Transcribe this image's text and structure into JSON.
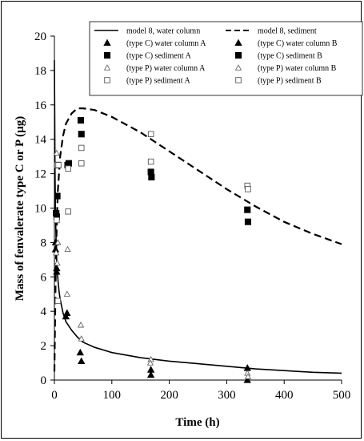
{
  "chart_data": {
    "type": "scatter",
    "xlabel": "Time (h)",
    "ylabel": "Mass of fenvalerate type C or P (µg)",
    "xlim": [
      0,
      500
    ],
    "ylim": [
      0,
      20
    ],
    "xticks": [
      "0",
      "100",
      "200",
      "300",
      "400",
      "500"
    ],
    "yticks": [
      "0",
      "2",
      "4",
      "6",
      "8",
      "10",
      "12",
      "14",
      "16",
      "18",
      "20"
    ],
    "grid": false,
    "legend_position": "top-right",
    "lines": [
      {
        "name": "model 8, water column",
        "style": "solid",
        "x": [
          0,
          0.5,
          1,
          2,
          3,
          4,
          6,
          8,
          10,
          15,
          20,
          30,
          40,
          50,
          70,
          100,
          150,
          200,
          250,
          300,
          350,
          400,
          450,
          500
        ],
        "y": [
          18.6,
          15.5,
          12.5,
          9.5,
          8.0,
          7.0,
          5.9,
          5.2,
          4.7,
          3.9,
          3.4,
          2.9,
          2.5,
          2.2,
          1.9,
          1.6,
          1.3,
          1.1,
          0.95,
          0.8,
          0.65,
          0.55,
          0.45,
          0.4
        ]
      },
      {
        "name": "model 8, sediment",
        "style": "dashed",
        "x": [
          0,
          1,
          2,
          4,
          6,
          10,
          15,
          20,
          30,
          40,
          50,
          70,
          100,
          150,
          200,
          250,
          300,
          350,
          400,
          450,
          500
        ],
        "y": [
          0.5,
          3.0,
          5.5,
          9.0,
          11.0,
          13.0,
          14.2,
          14.9,
          15.5,
          15.8,
          15.8,
          15.7,
          15.3,
          14.4,
          13.3,
          12.2,
          11.1,
          10.1,
          9.2,
          8.5,
          7.9
        ]
      }
    ],
    "series": [
      {
        "name": "(type C) water column A",
        "marker": "triangle-filled",
        "x": [
          2,
          4,
          20,
          45,
          168,
          336
        ],
        "y": [
          8.0,
          6.5,
          3.7,
          1.6,
          0.6,
          0.7
        ]
      },
      {
        "name": "(type C) water column B",
        "marker": "triangle-filled",
        "x": [
          2,
          4,
          22,
          47,
          168,
          336
        ],
        "y": [
          7.6,
          6.3,
          3.9,
          1.1,
          0.3,
          0.0
        ]
      },
      {
        "name": "(type C) sediment A",
        "marker": "square-filled",
        "x": [
          3,
          5,
          25,
          46,
          168,
          336
        ],
        "y": [
          9.7,
          10.7,
          12.6,
          15.1,
          12.1,
          9.9
        ]
      },
      {
        "name": "(type C) sediment B",
        "marker": "square-filled",
        "x": [
          4,
          6,
          23,
          47,
          169,
          337
        ],
        "y": [
          9.5,
          12.5,
          12.5,
          14.3,
          11.8,
          9.2
        ]
      },
      {
        "name": "(type P) water column A",
        "marker": "triangle-open",
        "x": [
          4,
          6,
          23,
          46,
          168,
          336
        ],
        "y": [
          13.2,
          8.0,
          7.6,
          3.2,
          1.2,
          0.4
        ]
      },
      {
        "name": "(type P) water column B",
        "marker": "triangle-open",
        "x": [
          3,
          5,
          22,
          47,
          167,
          337
        ],
        "y": [
          7.4,
          6.8,
          5.0,
          2.4,
          1.0,
          0.2
        ]
      },
      {
        "name": "(type P) sediment A",
        "marker": "square-open",
        "x": [
          4,
          6,
          24,
          47,
          168,
          336
        ],
        "y": [
          9.3,
          4.6,
          9.8,
          13.5,
          14.3,
          11.3
        ]
      },
      {
        "name": "(type P) sediment B",
        "marker": "square-open",
        "x": [
          5,
          7,
          24,
          47,
          168,
          337
        ],
        "y": [
          12.5,
          12.5,
          12.3,
          12.6,
          12.7,
          11.1
        ]
      }
    ]
  }
}
